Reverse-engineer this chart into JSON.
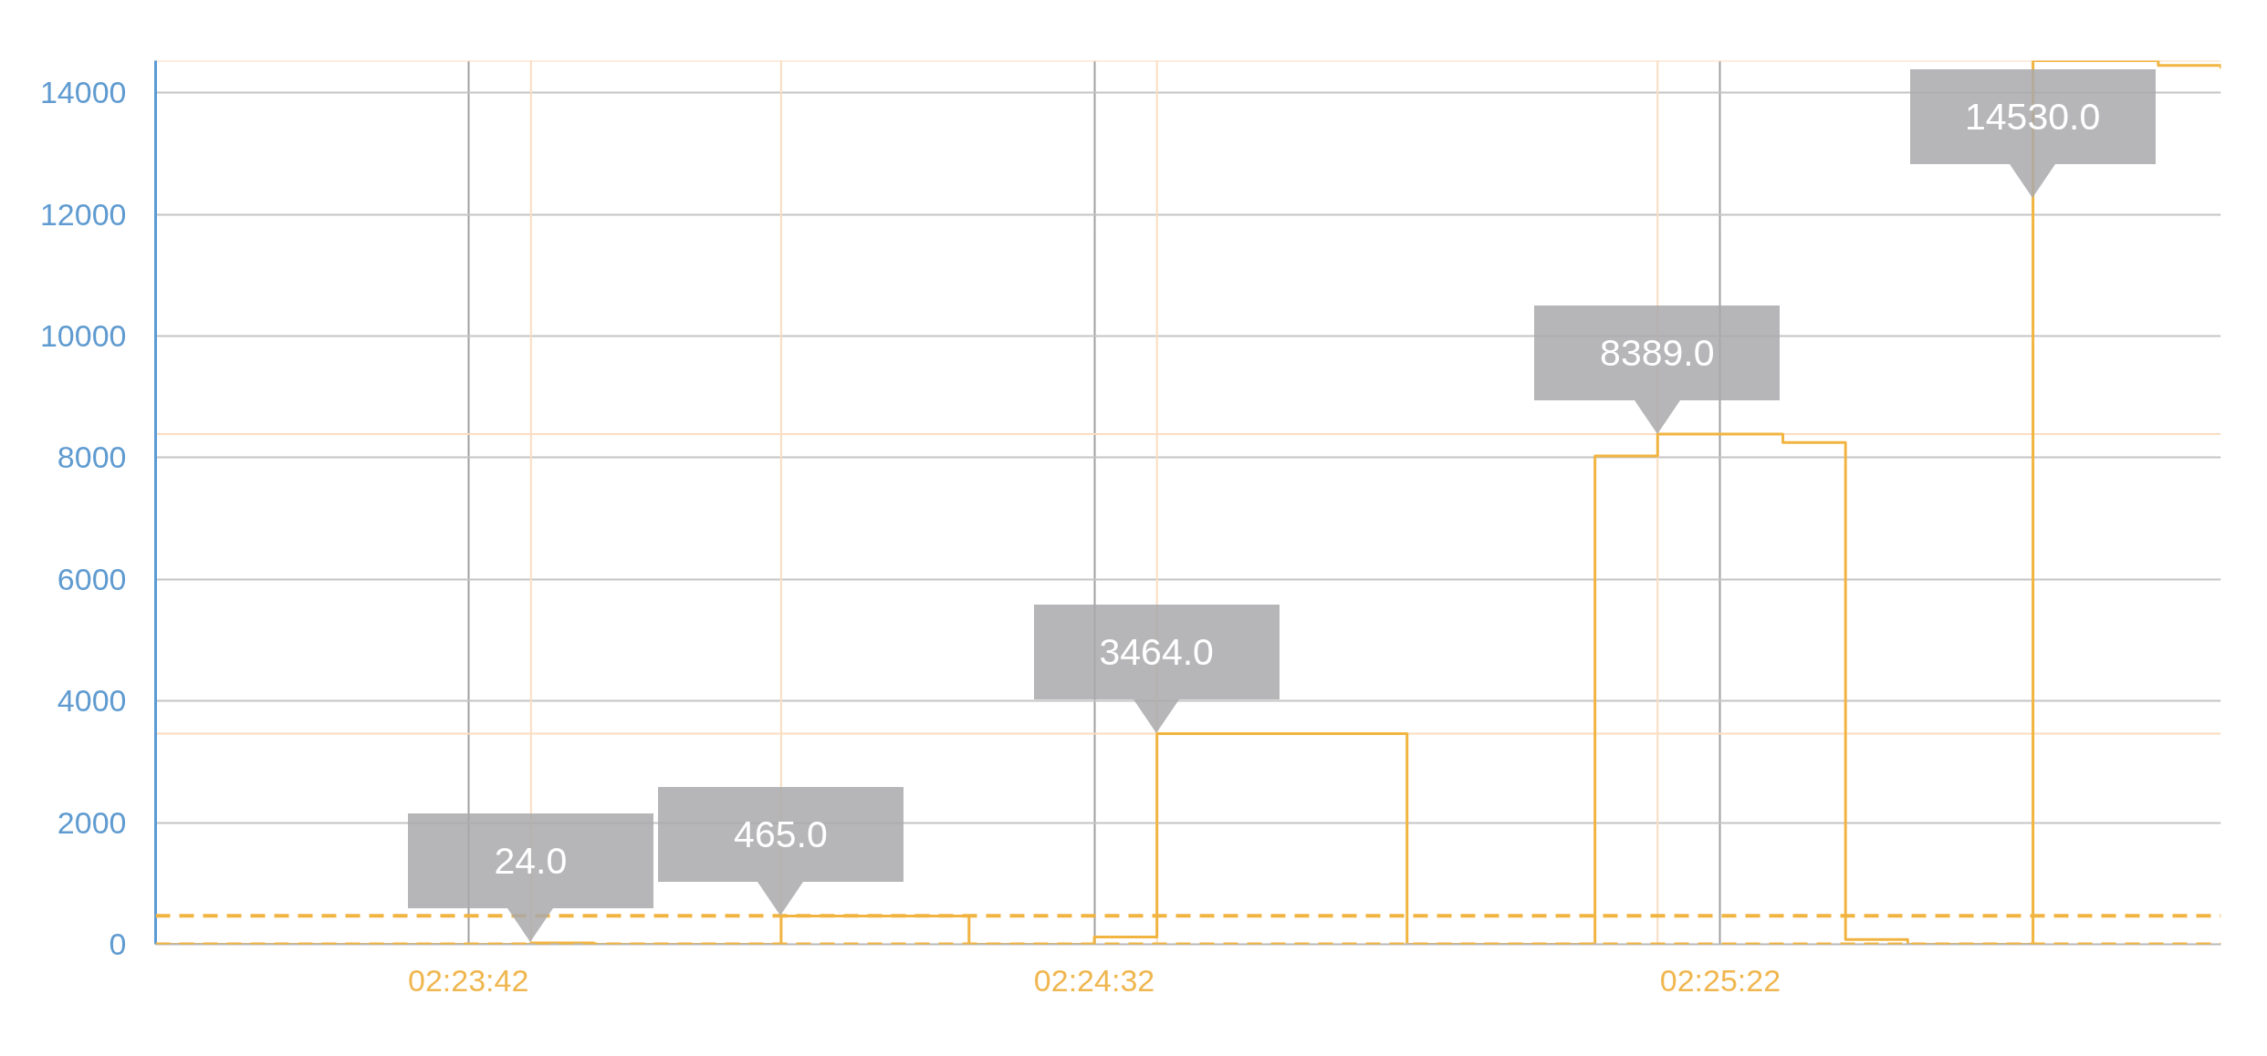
{
  "chart_data": {
    "type": "step",
    "x": [
      2.38806,
      2.38944,
      2.39083,
      2.39222,
      2.39361,
      2.395,
      2.39639,
      2.39778,
      2.39917,
      2.40056,
      2.40194,
      2.40333,
      2.40472,
      2.40611,
      2.4075,
      2.40889,
      2.41028,
      2.41167,
      2.41306,
      2.41444,
      2.41583,
      2.41722,
      2.41861,
      2.42,
      2.42139,
      2.42278,
      2.42417,
      2.42556,
      2.42694,
      2.42833,
      2.42972,
      2.43111,
      2.4325,
      2.43389
    ],
    "values": [
      0,
      0,
      0,
      0,
      0,
      0,
      24,
      0,
      0,
      0,
      465,
      465,
      465,
      0,
      0,
      120,
      3464,
      3464,
      3464,
      3464,
      0,
      0,
      0,
      8030,
      8389,
      8389,
      8250,
      80,
      0,
      0,
      14530,
      14530,
      14450,
      14400
    ],
    "value_labels": [
      null,
      null,
      null,
      null,
      null,
      null,
      "24.0",
      null,
      null,
      null,
      "465.0",
      null,
      null,
      null,
      null,
      null,
      "3464.0",
      null,
      null,
      null,
      null,
      null,
      null,
      null,
      "8389.0",
      null,
      null,
      null,
      null,
      null,
      "14530.0",
      null,
      null,
      null
    ],
    "color": "#f2b441",
    "xlim": [
      2.38806,
      2.43389
    ],
    "xticks": [
      {
        "value": 2.395,
        "label": "02:23:42"
      },
      {
        "value": 2.40889,
        "label": "02:24:32"
      },
      {
        "value": 2.42278,
        "label": "02:25:22"
      }
    ],
    "ylim": [
      0,
      14530
    ],
    "yticks": [
      0,
      2000,
      4000,
      6000,
      8000,
      10000,
      12000,
      14000
    ],
    "grid": true,
    "ref_lines": [
      {
        "axis": "y",
        "value": 0,
        "line_style": "dashed",
        "color": "#f2b441"
      },
      {
        "axis": "y",
        "value": 470,
        "line_style": "dashed",
        "color": "#f2b441"
      },
      {
        "axis": "y",
        "value": 14530,
        "color": "#fbdcc0"
      },
      {
        "axis": "y",
        "value": 8389,
        "color": "#fbdcc0"
      },
      {
        "axis": "y",
        "value": 3464,
        "color": "#fbdcc0"
      },
      {
        "axis": "x",
        "value": 2.39639,
        "color": "#fbdcc0"
      },
      {
        "axis": "x",
        "value": 2.40194,
        "color": "#fbdcc0"
      },
      {
        "axis": "x",
        "value": 2.41028,
        "color": "#fbdcc0"
      },
      {
        "axis": "x",
        "value": 2.42139,
        "color": "#fbdcc0"
      }
    ]
  }
}
